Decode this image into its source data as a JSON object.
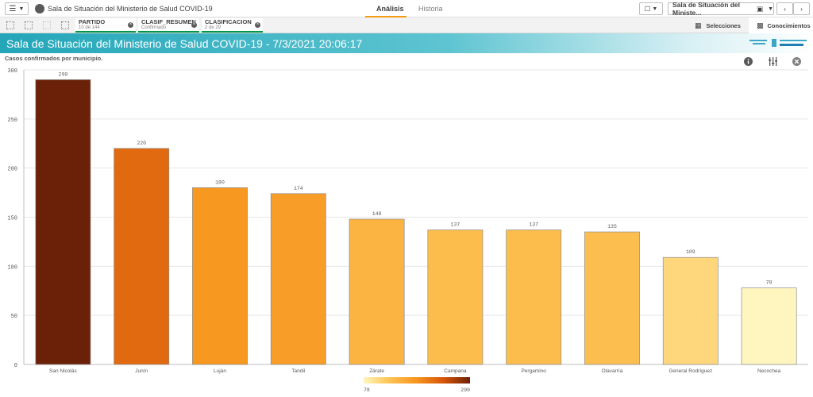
{
  "app": {
    "title": "Sala de Situación del Ministerio de Salud COVID-19",
    "nav_tabs": [
      "Análisis",
      "Historia"
    ],
    "sheet_selector_label": "Sala de Situación del Ministe..."
  },
  "selections": [
    {
      "field": "PARTIDO",
      "value": "10 de 144"
    },
    {
      "field": "CLASIF_RESUMEN",
      "value": "Confirmado"
    },
    {
      "field": "CLASIFICACION",
      "value": "2 de 29"
    }
  ],
  "panel_buttons": {
    "selections": "Selecciones",
    "insights": "Conocimientos"
  },
  "banner": {
    "title": "Sala de Situación del Ministerio de Salud COVID-19 - 7/3/2021 20:06:17"
  },
  "colors": {
    "accent": "#f39c12",
    "selection_green": "#009845",
    "banner_start": "#23a6b8",
    "grad_low": "#fff6bf",
    "grad_mid": "#f7941d",
    "grad_high": "#6b2107"
  },
  "chart_data": {
    "type": "bar",
    "title": "Casos confirmados por municipio.",
    "categories": [
      "San Nicolás",
      "Junín",
      "Luján",
      "Tandil",
      "Zárate",
      "Campana",
      "Pergamino",
      "Olavarría",
      "General Rodríguez",
      "Necochea"
    ],
    "values": [
      290,
      220,
      180,
      174,
      148,
      137,
      137,
      135,
      109,
      78
    ],
    "ylim": [
      0,
      300
    ],
    "yticks": [
      0,
      50,
      100,
      150,
      200,
      250,
      300
    ],
    "grid": true,
    "color_legend": {
      "min": 78,
      "max": 290,
      "placement": "bottom-center"
    }
  }
}
